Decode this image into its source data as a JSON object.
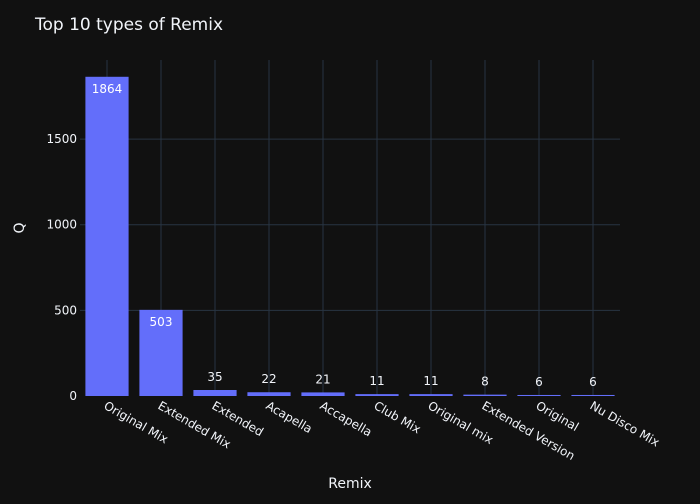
{
  "chart_data": {
    "type": "bar",
    "title": "Top 10 types of Remix",
    "xlabel": "Remix",
    "ylabel": "Q",
    "categories": [
      "Original Mix",
      "Extended Mix",
      "Extended",
      "Acapella",
      "Accapella",
      "Club Mix",
      "Original mix",
      "Extended Version",
      "Original",
      "Nu Disco Mix"
    ],
    "values": [
      1864,
      503,
      35,
      22,
      21,
      11,
      11,
      8,
      6,
      6
    ],
    "ylim": [
      0,
      1962
    ],
    "yticks": [
      0,
      500,
      1000,
      1500
    ],
    "grid": true,
    "legend": "none",
    "colors": {
      "background": "#111111",
      "bar": "#636efa",
      "grid": "#283442",
      "text": "#f2f5fa",
      "bar_label_inside": "#ffffff"
    }
  }
}
